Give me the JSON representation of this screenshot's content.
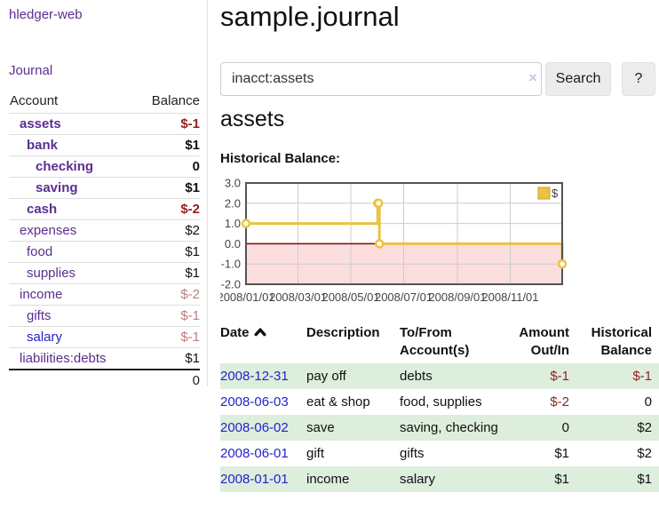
{
  "app": {
    "brand": "hledger-web",
    "nav_journal": "Journal"
  },
  "sidebar": {
    "header": {
      "account": "Account",
      "balance": "Balance"
    },
    "accounts": [
      {
        "name": "assets",
        "balance": "$-1",
        "depth": 1,
        "bold": true,
        "balance_style": "neg-strong"
      },
      {
        "name": "bank",
        "balance": "$1",
        "depth": 2,
        "bold": true,
        "balance_style": "pos"
      },
      {
        "name": "checking",
        "balance": "0",
        "depth": 3,
        "bold": true,
        "balance_style": "pos"
      },
      {
        "name": "saving",
        "balance": "$1",
        "depth": 3,
        "bold": true,
        "balance_style": "pos"
      },
      {
        "name": "cash",
        "balance": "$-2",
        "depth": 2,
        "bold": true,
        "balance_style": "neg-strong"
      },
      {
        "name": "expenses",
        "balance": "$2",
        "depth": 1,
        "bold": false,
        "balance_style": "pos"
      },
      {
        "name": "food",
        "balance": "$1",
        "depth": 2,
        "bold": false,
        "balance_style": "pos"
      },
      {
        "name": "supplies",
        "balance": "$1",
        "depth": 2,
        "bold": false,
        "balance_style": "pos"
      },
      {
        "name": "income",
        "balance": "$-2",
        "depth": 1,
        "bold": false,
        "balance_style": "neg-muted"
      },
      {
        "name": "gifts",
        "balance": "$-1",
        "depth": 2,
        "bold": false,
        "balance_style": "neg-muted"
      },
      {
        "name": "salary",
        "balance": "$-1",
        "depth": 2,
        "bold": false,
        "balance_style": "neg-muted",
        "link": "blue"
      },
      {
        "name": "liabilities:debts",
        "balance": "$1",
        "depth": 1,
        "bold": false,
        "balance_style": "pos"
      }
    ],
    "total": "0"
  },
  "main": {
    "title": "sample.journal",
    "search": {
      "value": "inacct:assets",
      "clear": "×",
      "button": "Search",
      "help": "?"
    },
    "account_title": "assets",
    "chart_label": "Historical Balance:"
  },
  "chart_data": {
    "type": "line",
    "step": true,
    "title": "Historical Balance",
    "xmin": "2008-01-01",
    "xmax": "2008-12-31",
    "ylim": [
      -2,
      3
    ],
    "y_ticks": [
      3.0,
      2.0,
      1.0,
      0.0,
      -1.0,
      -2.0
    ],
    "x_ticks": [
      "2008/01/01",
      "2008/03/01",
      "2008/05/01",
      "2008/07/01",
      "2008/09/01",
      "2008/11/01"
    ],
    "series": [
      {
        "name": "$",
        "color": "#edc240",
        "points": [
          [
            "2008-01-01",
            1
          ],
          [
            "2008-06-01",
            2
          ],
          [
            "2008-06-02",
            2
          ],
          [
            "2008-06-03",
            0
          ],
          [
            "2008-12-31",
            -1
          ]
        ]
      }
    ],
    "legend_position": "top-right",
    "grid": true,
    "negative_region_color": "#fcdede",
    "zero_line_color": "#8b0000",
    "border_color": "#545454"
  },
  "register": {
    "headers": {
      "date": "Date",
      "description": "Description",
      "accounts": "To/From Account(s)",
      "amount": "Amount Out/In",
      "balance": "Historical Balance"
    },
    "rows": [
      {
        "date": "2008-12-31",
        "description": "pay off",
        "accounts": "debts",
        "amount": "$-1",
        "amount_neg": true,
        "balance": "$-1",
        "balance_neg": true
      },
      {
        "date": "2008-06-03",
        "description": "eat & shop",
        "accounts": "food, supplies",
        "amount": "$-2",
        "amount_neg": true,
        "balance": "0",
        "balance_neg": false
      },
      {
        "date": "2008-06-02",
        "description": "save",
        "accounts": "saving, checking",
        "amount": "0",
        "amount_neg": false,
        "balance": "$2",
        "balance_neg": false
      },
      {
        "date": "2008-06-01",
        "description": "gift",
        "accounts": "gifts",
        "amount": "$1",
        "amount_neg": false,
        "balance": "$2",
        "balance_neg": false
      },
      {
        "date": "2008-01-01",
        "description": "income",
        "accounts": "salary",
        "amount": "$1",
        "amount_neg": false,
        "balance": "$1",
        "balance_neg": false
      }
    ]
  },
  "colors": {
    "purple": "#5b2d90",
    "blue": "#2323cc",
    "neg-strong": "#961f1f",
    "neg-muted": "#bd7d7d",
    "row-green": "#ddeedd",
    "chart-line": "#edc240",
    "chart-negative-fill": "#fcdede",
    "chart-zero-line": "#8b0000"
  }
}
